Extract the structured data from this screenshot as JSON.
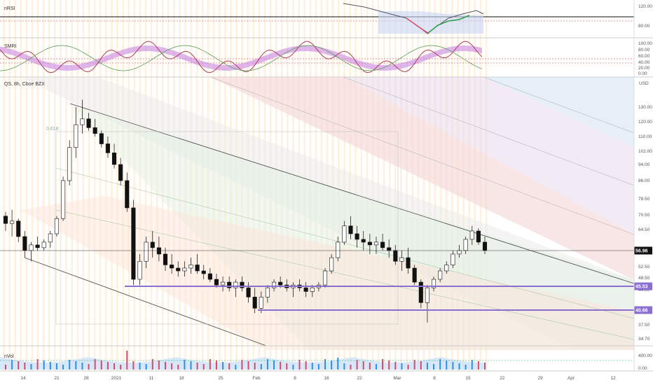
{
  "colors": {
    "up": "#ffffff",
    "down": "#111111",
    "wick": "#222222",
    "level": "#8a6fd1",
    "price_tag": "#111111",
    "vol_up": "#2f8fe6",
    "vol_down": "#d84a6a",
    "vol_area": "#cfe4f8",
    "stripe": "#fbe7c8"
  },
  "panels": {
    "nrsi": {
      "label": "nRSI",
      "ticks": [
        "120.00",
        "80.00"
      ]
    },
    "smri": {
      "label": "SMRI",
      "ticks": [
        "100.00",
        "80.00",
        "60.00",
        "40.00",
        "20.00",
        "0.00"
      ]
    },
    "main": {
      "title": "QS, 8h, Cboe BZX",
      "currency": "USD",
      "fib_label": "0.618"
    },
    "nvol": {
      "label": "nVol",
      "ticks": [
        "400.00",
        "0.00"
      ]
    }
  },
  "chart_data": {
    "type": "candlestick",
    "title": "QS, 8h, Cboe BZX",
    "currency": "USD",
    "y_ticks": [
      130,
      120,
      110,
      102,
      94,
      86,
      78.5,
      70.5,
      64.5,
      52.5,
      48.5,
      44.3,
      37.5,
      34.7
    ],
    "y_tick_labels": [
      "130.00",
      "120.00",
      "110.00",
      "102.00",
      "94.00",
      "86.00",
      "78.50",
      "70.50",
      "64.50",
      "52.50",
      "48.50",
      "44.30",
      "37.50",
      "34.70"
    ],
    "x_tick_labels": [
      "14",
      "21",
      "28",
      "2021",
      "11",
      "18",
      "25",
      "Feb",
      "8",
      "16",
      "22",
      "Mar",
      "8",
      "15",
      "22",
      "29",
      "Apr",
      "12"
    ],
    "last_price": "56.96",
    "levels": [
      {
        "label": "45.53",
        "value": 45.53
      },
      {
        "label": "40.66",
        "value": 40.66
      }
    ],
    "candles": [
      [
        70,
        72,
        64,
        67
      ],
      [
        67,
        73,
        62,
        68
      ],
      [
        68,
        69,
        60,
        62
      ],
      [
        62,
        64,
        55,
        57
      ],
      [
        57,
        60,
        54,
        59
      ],
      [
        59,
        62,
        57,
        58
      ],
      [
        58,
        61,
        57,
        60
      ],
      [
        60,
        64,
        58,
        63
      ],
      [
        63,
        70,
        62,
        69
      ],
      [
        69,
        88,
        68,
        86
      ],
      [
        86,
        108,
        84,
        104
      ],
      [
        104,
        130,
        98,
        118
      ],
      [
        118,
        135,
        112,
        122
      ],
      [
        122,
        126,
        114,
        116
      ],
      [
        116,
        122,
        110,
        112
      ],
      [
        112,
        114,
        104,
        106
      ],
      [
        106,
        110,
        98,
        101
      ],
      [
        101,
        106,
        92,
        94
      ],
      [
        94,
        98,
        84,
        86
      ],
      [
        86,
        90,
        72,
        74
      ],
      [
        74,
        78,
        46,
        48
      ],
      [
        48,
        56,
        46,
        54
      ],
      [
        54,
        62,
        52,
        60
      ],
      [
        60,
        64,
        55,
        58
      ],
      [
        58,
        62,
        54,
        56
      ],
      [
        56,
        58,
        51,
        53
      ],
      [
        53,
        56,
        50,
        52
      ],
      [
        52,
        54,
        49,
        51
      ],
      [
        51,
        54,
        49,
        52
      ],
      [
        52,
        55,
        50,
        53
      ],
      [
        53,
        56,
        50,
        51
      ],
      [
        51,
        53,
        48,
        50
      ],
      [
        50,
        52,
        47,
        48
      ],
      [
        48,
        50,
        45,
        46
      ],
      [
        46,
        49,
        44,
        47
      ],
      [
        47,
        49,
        44,
        45
      ],
      [
        45,
        48,
        43,
        47
      ],
      [
        47,
        49,
        44,
        45
      ],
      [
        45,
        47,
        42,
        43
      ],
      [
        43,
        45,
        40,
        41
      ],
      [
        41,
        44,
        40,
        43
      ],
      [
        43,
        46,
        42,
        45
      ],
      [
        45,
        48,
        44,
        47
      ],
      [
        47,
        49,
        45,
        46
      ],
      [
        46,
        48,
        44,
        45
      ],
      [
        45,
        47,
        43,
        46
      ],
      [
        46,
        48,
        44,
        45
      ],
      [
        45,
        47,
        43,
        44
      ],
      [
        44,
        46,
        43,
        45
      ],
      [
        45,
        47,
        44,
        46
      ],
      [
        46,
        52,
        45,
        51
      ],
      [
        51,
        56,
        50,
        55
      ],
      [
        55,
        62,
        54,
        60
      ],
      [
        60,
        68,
        59,
        66
      ],
      [
        66,
        70,
        61,
        63
      ],
      [
        63,
        66,
        58,
        61
      ],
      [
        61,
        64,
        57,
        60
      ],
      [
        60,
        63,
        56,
        59
      ],
      [
        59,
        62,
        56,
        60
      ],
      [
        60,
        63,
        57,
        58
      ],
      [
        58,
        61,
        55,
        57
      ],
      [
        57,
        59,
        53,
        54
      ],
      [
        54,
        57,
        51,
        55
      ],
      [
        55,
        58,
        50,
        52
      ],
      [
        52,
        53,
        46,
        47
      ],
      [
        47,
        48,
        41,
        42
      ],
      [
        42,
        46,
        38,
        45
      ],
      [
        45,
        49,
        44,
        48
      ],
      [
        48,
        52,
        47,
        51
      ],
      [
        51,
        54,
        50,
        53
      ],
      [
        53,
        57,
        52,
        56
      ],
      [
        56,
        59,
        55,
        57
      ],
      [
        57,
        62,
        56,
        61
      ],
      [
        61,
        66,
        59,
        64
      ],
      [
        64,
        65,
        59,
        60
      ],
      [
        60,
        62,
        56,
        57
      ]
    ]
  }
}
